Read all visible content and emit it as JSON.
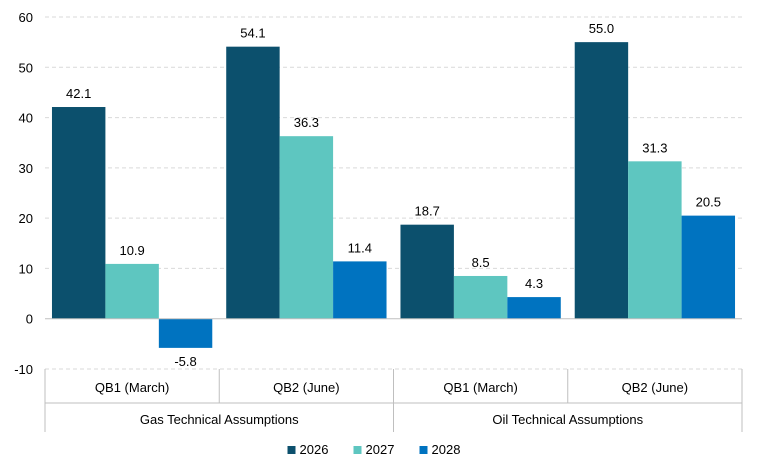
{
  "chart_data": {
    "type": "bar",
    "categories": [
      "QB1 (March)",
      "QB2 (June)",
      "QB1 (March)",
      "QB2 (June)"
    ],
    "groups": [
      {
        "label": "Gas Technical Assumptions",
        "categories": [
          0,
          1
        ]
      },
      {
        "label": "Oil Technical Assumptions",
        "categories": [
          2,
          3
        ]
      }
    ],
    "series": [
      {
        "name": "2026",
        "color": "#0c506d",
        "values": [
          42.1,
          54.1,
          18.7,
          55.0
        ],
        "labels": [
          "42.1",
          "54.1",
          "18.7",
          "55.0"
        ]
      },
      {
        "name": "2027",
        "color": "#5ec6c0",
        "values": [
          10.9,
          36.3,
          8.5,
          31.3
        ],
        "labels": [
          "10.9",
          "36.3",
          "8.5",
          "31.3"
        ]
      },
      {
        "name": "2028",
        "color": "#0073c0",
        "values": [
          -5.8,
          11.4,
          4.3,
          20.5
        ],
        "labels": [
          "-5.8",
          "11.4",
          "4.3",
          "20.5"
        ]
      }
    ],
    "ylim": [
      -10,
      60
    ],
    "yticks": [
      "-10",
      "0",
      "10",
      "20",
      "30",
      "40",
      "50",
      "60"
    ],
    "grid": true,
    "legend": "bottom-center"
  }
}
